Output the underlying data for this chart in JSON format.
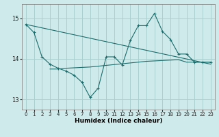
{
  "xlabel": "Humidex (Indice chaleur)",
  "bg_color": "#ceeaea",
  "grid_color": "#aacfcf",
  "line_color": "#1a6b6b",
  "xmin": -0.5,
  "xmax": 23.5,
  "ymin": 12.75,
  "ymax": 15.35,
  "yticks": [
    13,
    14,
    15
  ],
  "xticks": [
    0,
    1,
    2,
    3,
    4,
    5,
    6,
    7,
    8,
    9,
    10,
    11,
    12,
    13,
    14,
    15,
    16,
    17,
    18,
    19,
    20,
    21,
    22,
    23
  ],
  "line1_x": [
    0,
    1,
    2,
    3,
    4,
    5,
    6,
    7,
    8,
    9,
    10,
    11,
    12,
    13,
    14,
    15,
    16,
    17,
    18,
    19,
    20,
    21,
    22,
    23
  ],
  "line1_y": [
    14.85,
    14.65,
    14.05,
    13.87,
    13.77,
    13.7,
    13.6,
    13.42,
    13.05,
    13.28,
    14.05,
    14.05,
    13.85,
    14.45,
    14.82,
    14.82,
    15.12,
    14.68,
    14.48,
    14.12,
    14.12,
    13.92,
    13.92,
    13.92
  ],
  "line2_x": [
    0,
    23
  ],
  "line2_y": [
    14.85,
    13.87
  ],
  "line3_x": [
    3,
    4,
    5,
    6,
    7,
    8,
    9,
    10,
    11,
    12,
    13,
    14,
    15,
    16,
    17,
    18,
    19,
    20,
    21,
    22,
    23
  ],
  "line3_y": [
    13.75,
    13.75,
    13.77,
    13.78,
    13.79,
    13.8,
    13.82,
    13.84,
    13.86,
    13.88,
    13.9,
    13.92,
    13.94,
    13.95,
    13.96,
    13.97,
    13.98,
    13.92,
    13.92,
    13.92,
    13.92
  ]
}
